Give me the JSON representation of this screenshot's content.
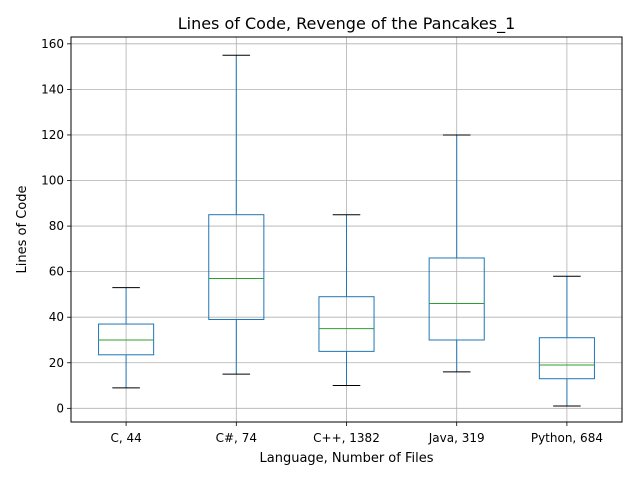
{
  "chart_data": {
    "type": "box",
    "title": "Lines of Code, Revenge of the Pancakes_1",
    "xlabel": "Language, Number of Files",
    "ylabel": "Lines of Code",
    "ylim": [
      -6,
      163
    ],
    "yticks": [
      0,
      20,
      40,
      60,
      80,
      100,
      120,
      140,
      160
    ],
    "grid": true,
    "categories": [
      "C, 44",
      "C#, 74",
      "C++, 1382",
      "Java, 319",
      "Python, 684"
    ],
    "boxes": [
      {
        "min": 9,
        "q1": 23.5,
        "median": 30,
        "q3": 37,
        "max": 53
      },
      {
        "min": 15,
        "q1": 39,
        "median": 57,
        "q3": 85,
        "max": 155
      },
      {
        "min": 10,
        "q1": 25,
        "median": 35,
        "q3": 49,
        "max": 85
      },
      {
        "min": 16,
        "q1": 30,
        "median": 46,
        "q3": 66,
        "max": 120
      },
      {
        "min": 1,
        "q1": 13,
        "median": 19,
        "q3": 31,
        "max": 58
      }
    ],
    "colors": {
      "box": "#1f77b4",
      "median": "#2ca02c",
      "whisker": "#1f77b4",
      "cap": "#000000",
      "grid": "#b0b0b0"
    }
  }
}
